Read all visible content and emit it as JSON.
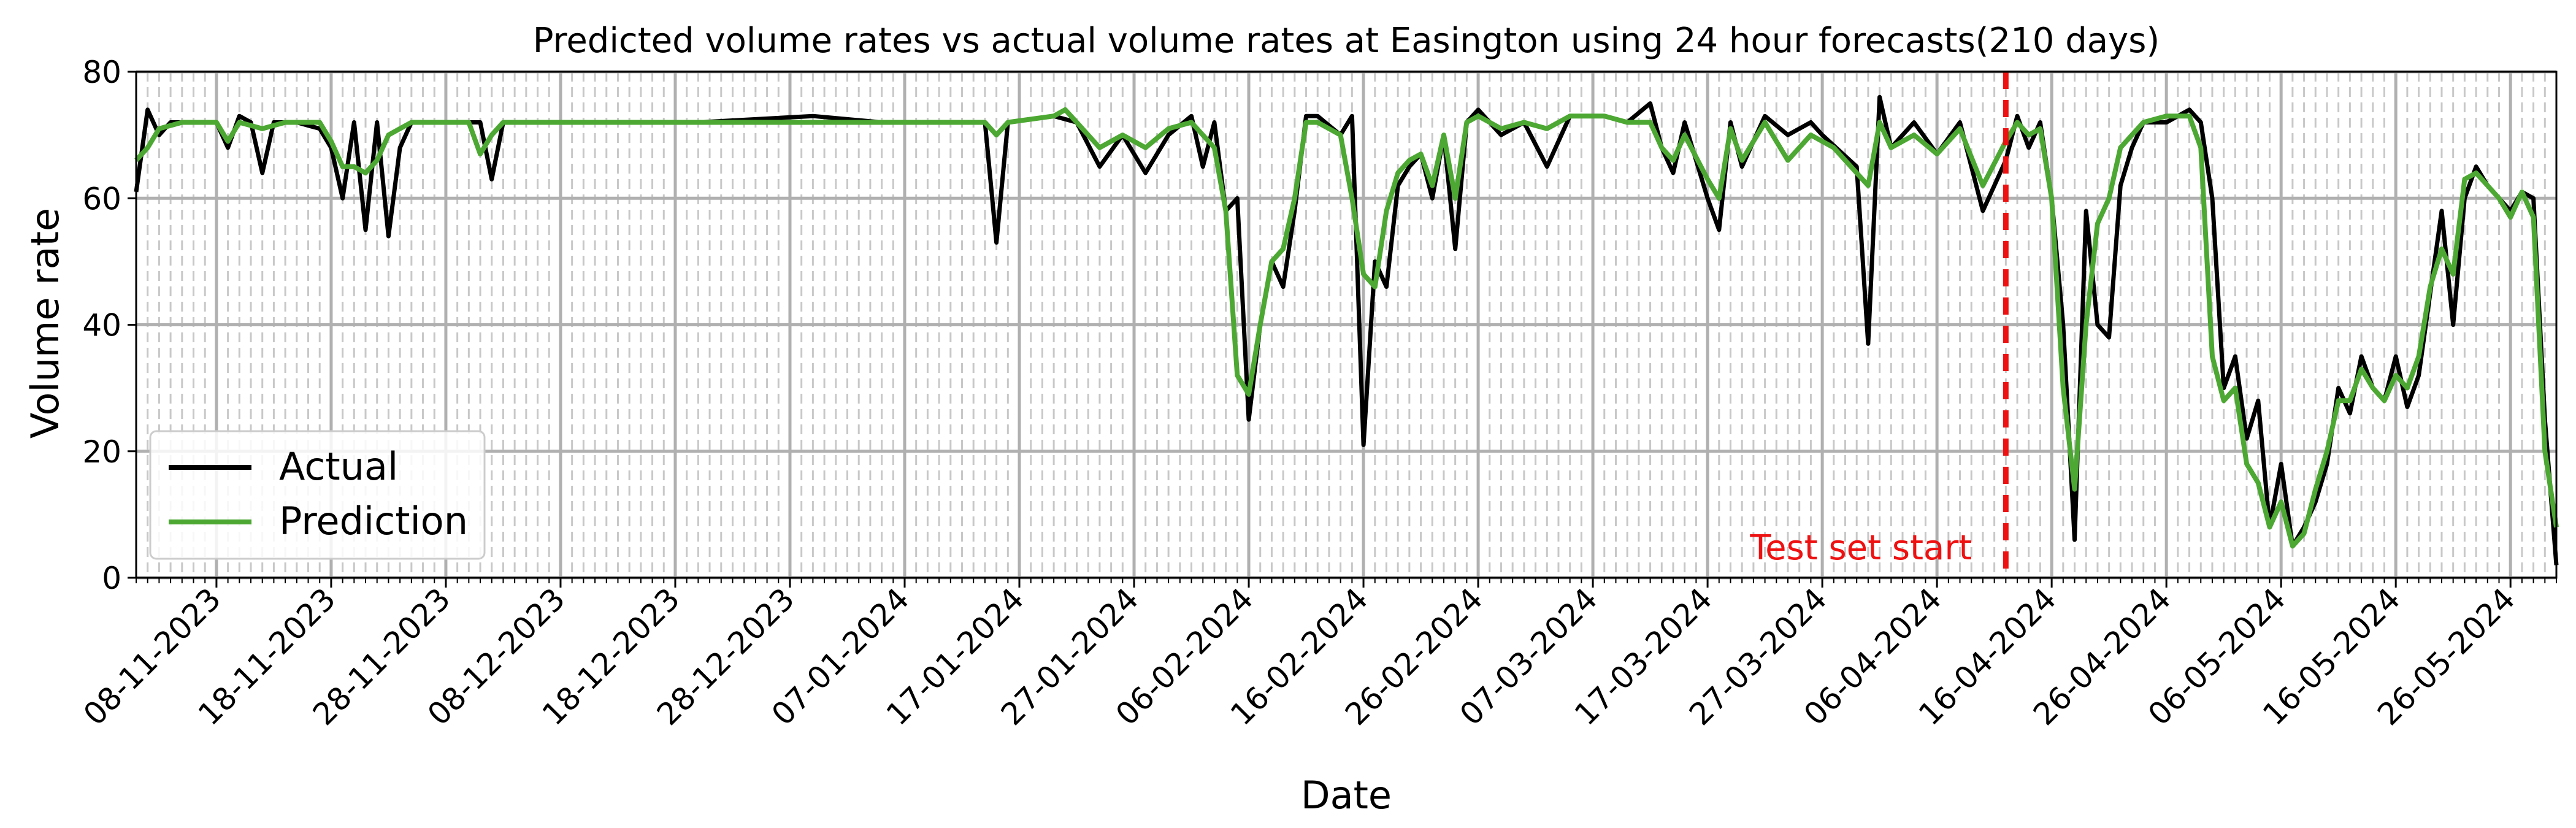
{
  "chart_data": {
    "type": "line",
    "title": "Predicted volume rates vs actual volume rates at Easington using 24 hour forecasts(210 days)",
    "xlabel": "Date",
    "ylabel": "Volume rate",
    "xlim": [
      "2023-11-01",
      "2024-05-30"
    ],
    "ylim": [
      0,
      80
    ],
    "yticks": [
      0,
      20,
      40,
      60,
      80
    ],
    "xticks": [
      "08-11-2023",
      "18-11-2023",
      "28-11-2023",
      "08-12-2023",
      "18-12-2023",
      "28-12-2023",
      "07-01-2024",
      "17-01-2024",
      "27-01-2024",
      "06-02-2024",
      "16-02-2024",
      "26-02-2024",
      "07-03-2024",
      "17-03-2024",
      "27-03-2024",
      "06-04-2024",
      "16-04-2024",
      "26-04-2024",
      "06-05-2024",
      "16-05-2024",
      "26-05-2024"
    ],
    "grid": true,
    "legend_position": "lower-left",
    "annotation": {
      "text": "Test set start",
      "x": "2024-04-12",
      "color": "#ee1111"
    },
    "series": [
      {
        "name": "Actual",
        "color": "#000000",
        "points": [
          [
            "2023-11-01",
            61
          ],
          [
            "2023-11-02",
            74
          ],
          [
            "2023-11-03",
            70
          ],
          [
            "2023-11-04",
            72
          ],
          [
            "2023-11-06",
            72
          ],
          [
            "2023-11-08",
            72
          ],
          [
            "2023-11-09",
            68
          ],
          [
            "2023-11-10",
            73
          ],
          [
            "2023-11-11",
            72
          ],
          [
            "2023-11-12",
            64
          ],
          [
            "2023-11-13",
            72
          ],
          [
            "2023-11-15",
            72
          ],
          [
            "2023-11-17",
            71
          ],
          [
            "2023-11-18",
            68
          ],
          [
            "2023-11-19",
            60
          ],
          [
            "2023-11-20",
            72
          ],
          [
            "2023-11-21",
            55
          ],
          [
            "2023-11-22",
            72
          ],
          [
            "2023-11-23",
            54
          ],
          [
            "2023-11-24",
            68
          ],
          [
            "2023-11-25",
            72
          ],
          [
            "2023-11-27",
            72
          ],
          [
            "2023-11-29",
            72
          ],
          [
            "2023-12-01",
            72
          ],
          [
            "2023-12-02",
            63
          ],
          [
            "2023-12-03",
            72
          ],
          [
            "2023-12-10",
            72
          ],
          [
            "2023-12-20",
            72
          ],
          [
            "2023-12-30",
            73
          ],
          [
            "2024-01-05",
            72
          ],
          [
            "2024-01-10",
            72
          ],
          [
            "2024-01-14",
            72
          ],
          [
            "2024-01-15",
            53
          ],
          [
            "2024-01-16",
            72
          ],
          [
            "2024-01-20",
            73
          ],
          [
            "2024-01-22",
            72
          ],
          [
            "2024-01-24",
            65
          ],
          [
            "2024-01-26",
            70
          ],
          [
            "2024-01-28",
            64
          ],
          [
            "2024-01-30",
            70
          ],
          [
            "2024-02-01",
            73
          ],
          [
            "2024-02-02",
            65
          ],
          [
            "2024-02-03",
            72
          ],
          [
            "2024-02-04",
            58
          ],
          [
            "2024-02-05",
            60
          ],
          [
            "2024-02-06",
            25
          ],
          [
            "2024-02-07",
            40
          ],
          [
            "2024-02-08",
            50
          ],
          [
            "2024-02-09",
            46
          ],
          [
            "2024-02-10",
            58
          ],
          [
            "2024-02-11",
            73
          ],
          [
            "2024-02-12",
            73
          ],
          [
            "2024-02-14",
            70
          ],
          [
            "2024-02-15",
            73
          ],
          [
            "2024-02-16",
            21
          ],
          [
            "2024-02-17",
            50
          ],
          [
            "2024-02-18",
            46
          ],
          [
            "2024-02-19",
            62
          ],
          [
            "2024-02-20",
            65
          ],
          [
            "2024-02-21",
            67
          ],
          [
            "2024-02-22",
            60
          ],
          [
            "2024-02-23",
            70
          ],
          [
            "2024-02-24",
            52
          ],
          [
            "2024-02-25",
            72
          ],
          [
            "2024-02-26",
            74
          ],
          [
            "2024-02-28",
            70
          ],
          [
            "2024-03-01",
            72
          ],
          [
            "2024-03-03",
            65
          ],
          [
            "2024-03-05",
            73
          ],
          [
            "2024-03-08",
            73
          ],
          [
            "2024-03-10",
            72
          ],
          [
            "2024-03-12",
            75
          ],
          [
            "2024-03-13",
            68
          ],
          [
            "2024-03-14",
            64
          ],
          [
            "2024-03-15",
            72
          ],
          [
            "2024-03-17",
            60
          ],
          [
            "2024-03-18",
            55
          ],
          [
            "2024-03-19",
            72
          ],
          [
            "2024-03-20",
            65
          ],
          [
            "2024-03-22",
            73
          ],
          [
            "2024-03-24",
            70
          ],
          [
            "2024-03-26",
            72
          ],
          [
            "2024-03-27",
            70
          ],
          [
            "2024-03-30",
            65
          ],
          [
            "2024-03-31",
            37
          ],
          [
            "2024-04-01",
            76
          ],
          [
            "2024-04-02",
            68
          ],
          [
            "2024-04-04",
            72
          ],
          [
            "2024-04-06",
            67
          ],
          [
            "2024-04-08",
            72
          ],
          [
            "2024-04-10",
            58
          ],
          [
            "2024-04-12",
            66
          ],
          [
            "2024-04-13",
            73
          ],
          [
            "2024-04-14",
            68
          ],
          [
            "2024-04-15",
            72
          ],
          [
            "2024-04-16",
            60
          ],
          [
            "2024-04-17",
            40
          ],
          [
            "2024-04-18",
            6
          ],
          [
            "2024-04-19",
            58
          ],
          [
            "2024-04-20",
            40
          ],
          [
            "2024-04-21",
            38
          ],
          [
            "2024-04-22",
            62
          ],
          [
            "2024-04-23",
            68
          ],
          [
            "2024-04-24",
            72
          ],
          [
            "2024-04-26",
            72
          ],
          [
            "2024-04-28",
            74
          ],
          [
            "2024-04-29",
            72
          ],
          [
            "2024-04-30",
            60
          ],
          [
            "2024-05-01",
            30
          ],
          [
            "2024-05-02",
            35
          ],
          [
            "2024-05-03",
            22
          ],
          [
            "2024-05-04",
            28
          ],
          [
            "2024-05-05",
            8
          ],
          [
            "2024-05-06",
            18
          ],
          [
            "2024-05-07",
            5
          ],
          [
            "2024-05-08",
            8
          ],
          [
            "2024-05-09",
            12
          ],
          [
            "2024-05-10",
            18
          ],
          [
            "2024-05-11",
            30
          ],
          [
            "2024-05-12",
            26
          ],
          [
            "2024-05-13",
            35
          ],
          [
            "2024-05-14",
            30
          ],
          [
            "2024-05-15",
            28
          ],
          [
            "2024-05-16",
            35
          ],
          [
            "2024-05-17",
            27
          ],
          [
            "2024-05-18",
            32
          ],
          [
            "2024-05-19",
            45
          ],
          [
            "2024-05-20",
            58
          ],
          [
            "2024-05-21",
            40
          ],
          [
            "2024-05-22",
            60
          ],
          [
            "2024-05-23",
            65
          ],
          [
            "2024-05-24",
            62
          ],
          [
            "2024-05-25",
            60
          ],
          [
            "2024-05-26",
            58
          ],
          [
            "2024-05-27",
            61
          ],
          [
            "2024-05-28",
            60
          ],
          [
            "2024-05-29",
            25
          ],
          [
            "2024-05-30",
            2
          ]
        ]
      },
      {
        "name": "Prediction",
        "color": "#4ca832",
        "points": [
          [
            "2023-11-01",
            66
          ],
          [
            "2023-11-02",
            68
          ],
          [
            "2023-11-03",
            71
          ],
          [
            "2023-11-05",
            72
          ],
          [
            "2023-11-08",
            72
          ],
          [
            "2023-11-09",
            69
          ],
          [
            "2023-11-10",
            72
          ],
          [
            "2023-11-12",
            71
          ],
          [
            "2023-11-14",
            72
          ],
          [
            "2023-11-17",
            72
          ],
          [
            "2023-11-18",
            69
          ],
          [
            "2023-11-19",
            65
          ],
          [
            "2023-11-20",
            65
          ],
          [
            "2023-11-21",
            64
          ],
          [
            "2023-11-22",
            66
          ],
          [
            "2023-11-23",
            70
          ],
          [
            "2023-11-24",
            71
          ],
          [
            "2023-11-25",
            72
          ],
          [
            "2023-11-30",
            72
          ],
          [
            "2023-12-01",
            67
          ],
          [
            "2023-12-02",
            70
          ],
          [
            "2023-12-03",
            72
          ],
          [
            "2023-12-15",
            72
          ],
          [
            "2023-12-30",
            72
          ],
          [
            "2024-01-10",
            72
          ],
          [
            "2024-01-14",
            72
          ],
          [
            "2024-01-15",
            70
          ],
          [
            "2024-01-16",
            72
          ],
          [
            "2024-01-20",
            73
          ],
          [
            "2024-01-21",
            74
          ],
          [
            "2024-01-22",
            72
          ],
          [
            "2024-01-24",
            68
          ],
          [
            "2024-01-26",
            70
          ],
          [
            "2024-01-28",
            68
          ],
          [
            "2024-01-30",
            71
          ],
          [
            "2024-02-01",
            72
          ],
          [
            "2024-02-03",
            68
          ],
          [
            "2024-02-04",
            58
          ],
          [
            "2024-02-05",
            32
          ],
          [
            "2024-02-06",
            29
          ],
          [
            "2024-02-07",
            40
          ],
          [
            "2024-02-08",
            50
          ],
          [
            "2024-02-09",
            52
          ],
          [
            "2024-02-10",
            60
          ],
          [
            "2024-02-11",
            72
          ],
          [
            "2024-02-12",
            72
          ],
          [
            "2024-02-14",
            70
          ],
          [
            "2024-02-15",
            60
          ],
          [
            "2024-02-16",
            48
          ],
          [
            "2024-02-17",
            46
          ],
          [
            "2024-02-18",
            58
          ],
          [
            "2024-02-19",
            64
          ],
          [
            "2024-02-20",
            66
          ],
          [
            "2024-02-21",
            67
          ],
          [
            "2024-02-22",
            62
          ],
          [
            "2024-02-23",
            70
          ],
          [
            "2024-02-24",
            60
          ],
          [
            "2024-02-25",
            72
          ],
          [
            "2024-02-26",
            73
          ],
          [
            "2024-02-28",
            71
          ],
          [
            "2024-03-01",
            72
          ],
          [
            "2024-03-03",
            71
          ],
          [
            "2024-03-05",
            73
          ],
          [
            "2024-03-08",
            73
          ],
          [
            "2024-03-10",
            72
          ],
          [
            "2024-03-12",
            72
          ],
          [
            "2024-03-13",
            68
          ],
          [
            "2024-03-14",
            66
          ],
          [
            "2024-03-15",
            70
          ],
          [
            "2024-03-17",
            63
          ],
          [
            "2024-03-18",
            60
          ],
          [
            "2024-03-19",
            71
          ],
          [
            "2024-03-20",
            66
          ],
          [
            "2024-03-22",
            72
          ],
          [
            "2024-03-24",
            66
          ],
          [
            "2024-03-26",
            70
          ],
          [
            "2024-03-28",
            68
          ],
          [
            "2024-03-30",
            64
          ],
          [
            "2024-03-31",
            62
          ],
          [
            "2024-04-01",
            72
          ],
          [
            "2024-04-02",
            68
          ],
          [
            "2024-04-04",
            70
          ],
          [
            "2024-04-06",
            67
          ],
          [
            "2024-04-08",
            71
          ],
          [
            "2024-04-10",
            62
          ],
          [
            "2024-04-12",
            69
          ],
          [
            "2024-04-13",
            72
          ],
          [
            "2024-04-14",
            70
          ],
          [
            "2024-04-15",
            71
          ],
          [
            "2024-04-16",
            60
          ],
          [
            "2024-04-17",
            30
          ],
          [
            "2024-04-18",
            14
          ],
          [
            "2024-04-19",
            40
          ],
          [
            "2024-04-20",
            56
          ],
          [
            "2024-04-21",
            60
          ],
          [
            "2024-04-22",
            68
          ],
          [
            "2024-04-23",
            70
          ],
          [
            "2024-04-24",
            72
          ],
          [
            "2024-04-26",
            73
          ],
          [
            "2024-04-28",
            73
          ],
          [
            "2024-04-29",
            68
          ],
          [
            "2024-04-30",
            35
          ],
          [
            "2024-05-01",
            28
          ],
          [
            "2024-05-02",
            30
          ],
          [
            "2024-05-03",
            18
          ],
          [
            "2024-05-04",
            15
          ],
          [
            "2024-05-05",
            8
          ],
          [
            "2024-05-06",
            12
          ],
          [
            "2024-05-07",
            5
          ],
          [
            "2024-05-08",
            7
          ],
          [
            "2024-05-09",
            14
          ],
          [
            "2024-05-10",
            20
          ],
          [
            "2024-05-11",
            28
          ],
          [
            "2024-05-12",
            28
          ],
          [
            "2024-05-13",
            33
          ],
          [
            "2024-05-14",
            30
          ],
          [
            "2024-05-15",
            28
          ],
          [
            "2024-05-16",
            32
          ],
          [
            "2024-05-17",
            30
          ],
          [
            "2024-05-18",
            35
          ],
          [
            "2024-05-19",
            46
          ],
          [
            "2024-05-20",
            52
          ],
          [
            "2024-05-21",
            48
          ],
          [
            "2024-05-22",
            63
          ],
          [
            "2024-05-23",
            64
          ],
          [
            "2024-05-24",
            62
          ],
          [
            "2024-05-25",
            60
          ],
          [
            "2024-05-26",
            57
          ],
          [
            "2024-05-27",
            61
          ],
          [
            "2024-05-28",
            57
          ],
          [
            "2024-05-29",
            20
          ],
          [
            "2024-05-30",
            8
          ]
        ]
      }
    ]
  }
}
